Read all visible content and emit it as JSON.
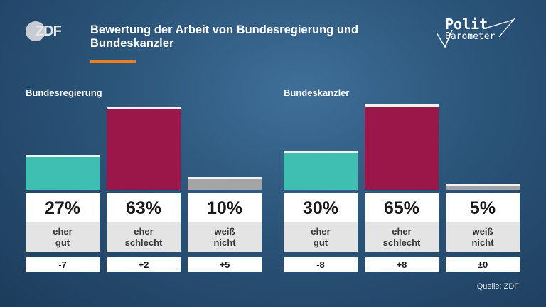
{
  "header": {
    "logo_text": "ZDF",
    "title": "Bewertung der Arbeit von Bundesregierung und Bundeskanzler",
    "brand_line1": "Polit",
    "brand_line2": "Barometer",
    "accent_color": "#f07d1e"
  },
  "chart_data": [
    {
      "type": "bar",
      "title": "Bundesregierung",
      "categories": [
        "eher gut",
        "eher schlecht",
        "weiß nicht"
      ],
      "category_lines": [
        [
          "eher",
          "gut"
        ],
        [
          "eher",
          "schlecht"
        ],
        [
          "weiß",
          "nicht"
        ]
      ],
      "values": [
        27,
        63,
        10
      ],
      "value_labels": [
        "27%",
        "63%",
        "10%"
      ],
      "changes": [
        "-7",
        "+2",
        "+5"
      ],
      "colors": [
        "#3fbfb2",
        "#9b174a",
        "#a5a5a5"
      ],
      "ylim": [
        0,
        100
      ]
    },
    {
      "type": "bar",
      "title": "Bundeskanzler",
      "categories": [
        "eher gut",
        "eher schlecht",
        "weiß nicht"
      ],
      "category_lines": [
        [
          "eher",
          "gut"
        ],
        [
          "eher",
          "schlecht"
        ],
        [
          "weiß",
          "nicht"
        ]
      ],
      "values": [
        30,
        65,
        5
      ],
      "value_labels": [
        "30%",
        "65%",
        "5%"
      ],
      "changes": [
        "-8",
        "+8",
        "±0"
      ],
      "colors": [
        "#3fbfb2",
        "#9b174a",
        "#a5a5a5"
      ],
      "ylim": [
        0,
        100
      ]
    }
  ],
  "footer": {
    "source": "Quelle: ZDF"
  }
}
